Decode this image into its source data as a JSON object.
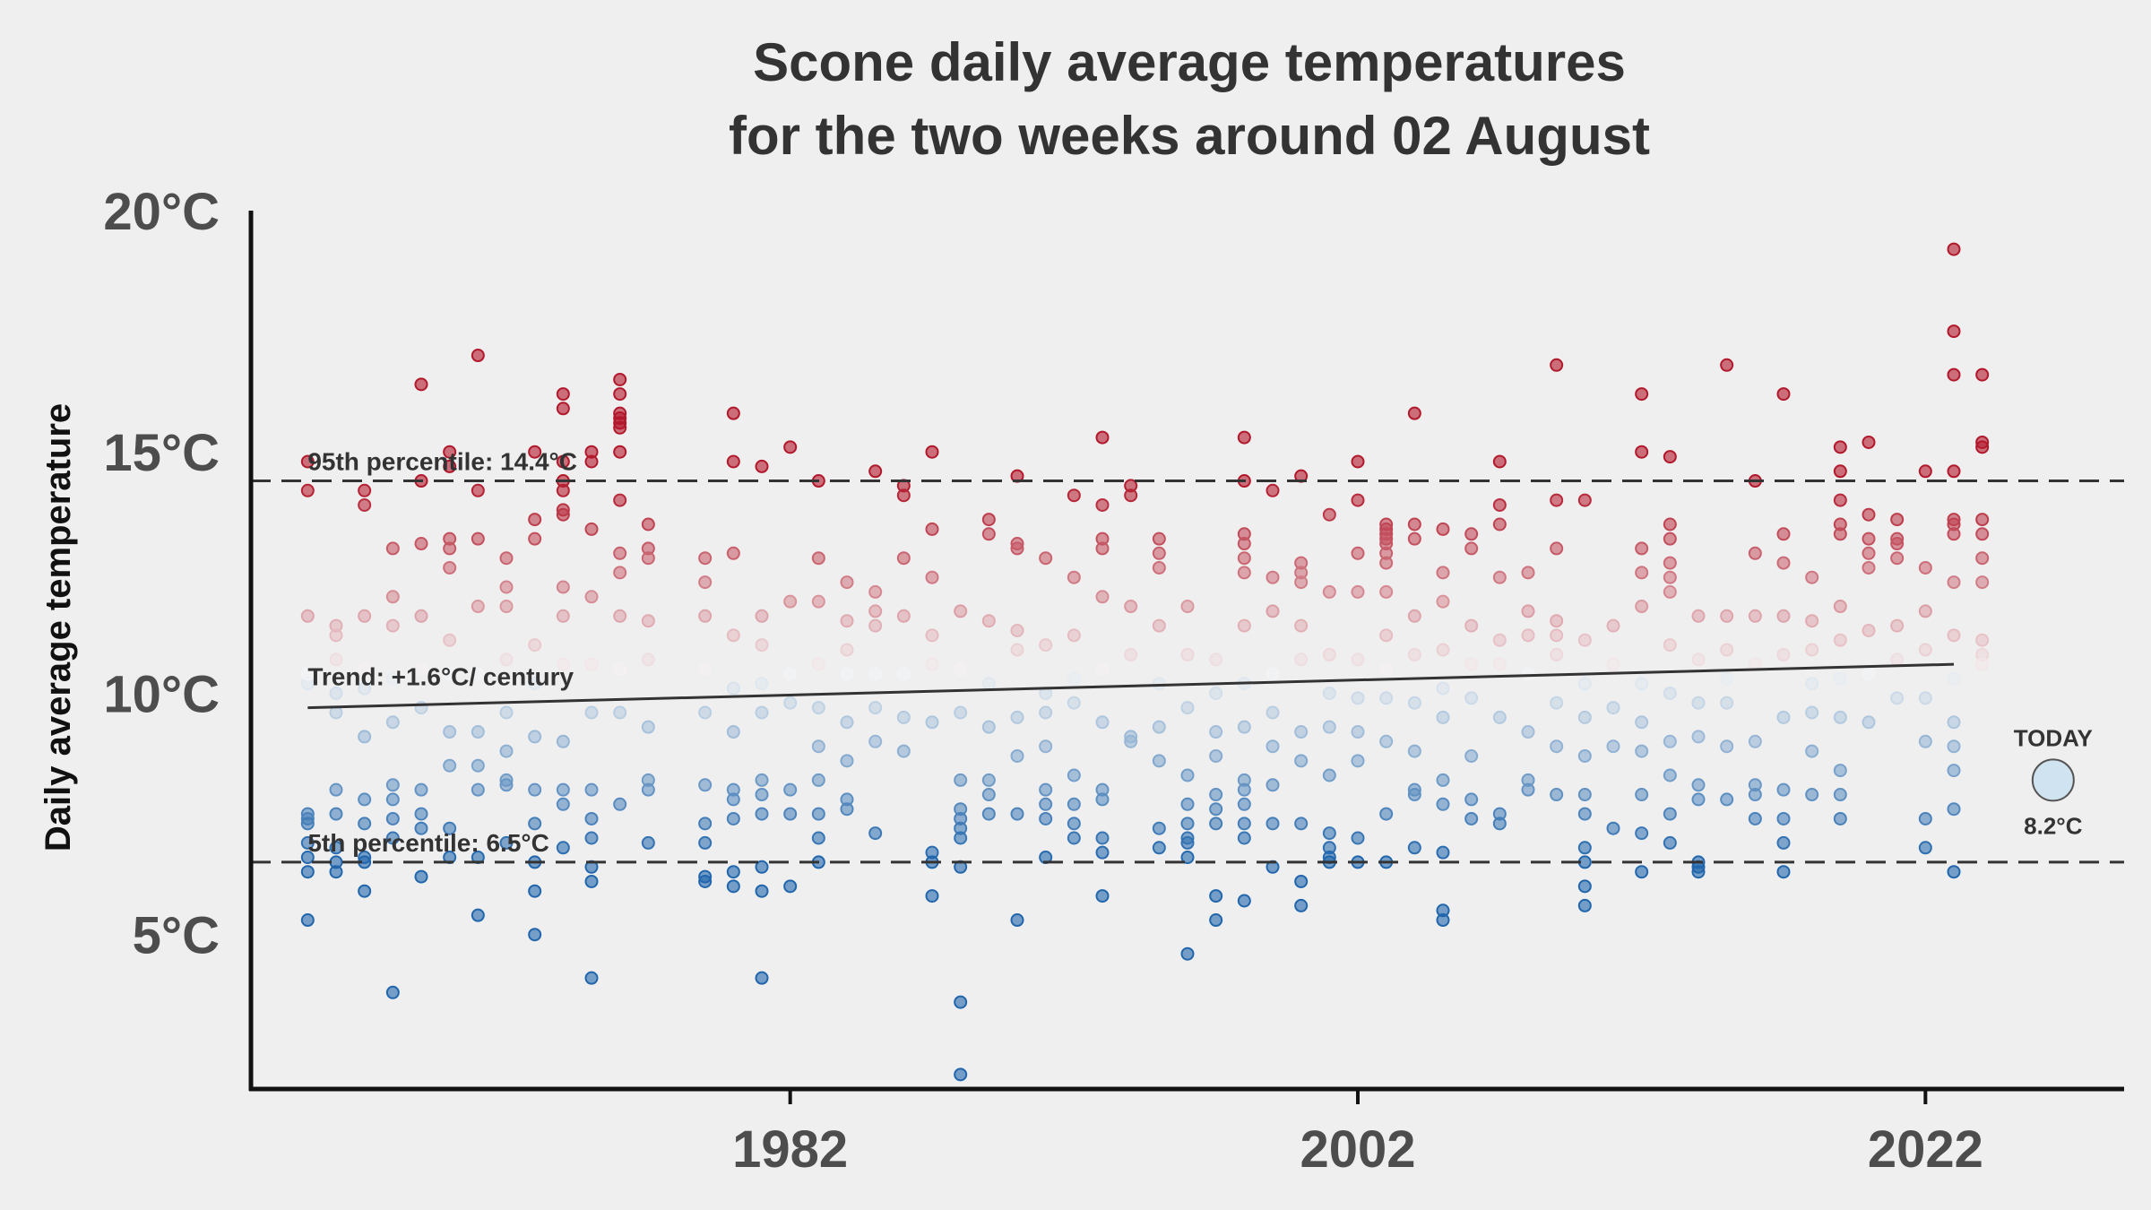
{
  "chart_data": {
    "type": "scatter",
    "title": "Scone daily average temperatures\nfor the two weeks around 02 August",
    "ylabel": "Daily average temperature",
    "xlabel": "",
    "xlim": [
      1963,
      2029
    ],
    "ylim": [
      1.8,
      20
    ],
    "x_ticks": [
      1982,
      2002,
      2022
    ],
    "x_tick_labels": [
      "1982",
      "2002",
      "2022"
    ],
    "y_ticks": [
      5,
      10,
      15,
      20
    ],
    "y_tick_labels": [
      "5°C",
      "10°C",
      "15°C",
      "20°C"
    ],
    "grid": false,
    "colormap": {
      "low": "#2166ac",
      "mid": "#f7f7f7",
      "high": "#b2182b",
      "range": [
        6.5,
        14.4
      ]
    },
    "percentile_95": {
      "value": 14.4,
      "label": "95th percentile: 14.4°C"
    },
    "percentile_5": {
      "value": 6.5,
      "label": "5th percentile: 6.5°C"
    },
    "trend": {
      "label": "Trend: +1.6°C/ century",
      "start": [
        1965,
        9.7
      ],
      "end": [
        2023,
        10.6
      ]
    },
    "today": {
      "label": "TODAY",
      "value_label": "8.2°C",
      "x": 2026.5,
      "y": 8.2
    },
    "series": [
      {
        "x": 1965,
        "values": [
          14.8,
          14.2,
          11.6,
          10.2,
          10.4,
          7.4,
          7.5,
          7.3,
          6.9,
          6.6,
          6.3,
          5.3
        ]
      },
      {
        "x": 1966,
        "values": [
          11.4,
          11.2,
          10.7,
          10.0,
          9.6,
          8.0,
          7.5,
          6.8,
          6.5,
          6.3
        ]
      },
      {
        "x": 1967,
        "values": [
          14.2,
          13.9,
          11.6,
          10.5,
          10.1,
          9.1,
          7.8,
          7.3,
          6.6,
          6.5,
          5.9
        ]
      },
      {
        "x": 1968,
        "values": [
          13.0,
          12.0,
          11.4,
          10.3,
          9.4,
          8.1,
          7.8,
          7.4,
          7.0,
          3.8
        ]
      },
      {
        "x": 1969,
        "values": [
          16.4,
          14.4,
          13.1,
          11.6,
          10.5,
          9.7,
          8.0,
          7.5,
          7.2,
          6.2
        ]
      },
      {
        "x": 1970,
        "values": [
          15.0,
          14.7,
          13.2,
          13.0,
          12.6,
          11.1,
          10.4,
          9.2,
          8.5,
          7.2,
          6.6
        ]
      },
      {
        "x": 1971,
        "values": [
          17.0,
          14.2,
          13.2,
          11.8,
          10.4,
          9.2,
          8.5,
          8.0,
          6.6,
          5.4
        ]
      },
      {
        "x": 1972,
        "values": [
          12.8,
          12.2,
          11.8,
          10.7,
          9.6,
          8.8,
          8.2,
          8.1,
          6.9
        ]
      },
      {
        "x": 1973,
        "values": [
          15.0,
          13.6,
          13.2,
          11.0,
          10.2,
          9.1,
          8.0,
          7.3,
          6.5,
          5.9,
          5.0
        ]
      },
      {
        "x": 1974,
        "values": [
          16.2,
          15.9,
          14.8,
          14.4,
          14.2,
          13.8,
          13.7,
          12.2,
          11.6,
          10.6,
          9.0,
          8.0,
          7.7,
          6.8
        ]
      },
      {
        "x": 1975,
        "values": [
          15.0,
          14.8,
          13.4,
          12.0,
          10.6,
          9.6,
          8.0,
          7.4,
          7.0,
          6.4,
          6.1,
          4.1
        ]
      },
      {
        "x": 1976,
        "values": [
          16.5,
          16.2,
          15.8,
          15.7,
          15.6,
          15.5,
          15.0,
          14.0,
          12.9,
          12.5,
          11.6,
          10.5,
          9.6,
          7.7
        ]
      },
      {
        "x": 1977,
        "values": [
          13.5,
          13.0,
          12.8,
          11.5,
          10.7,
          9.3,
          8.2,
          8.0,
          6.9
        ]
      },
      {
        "x": 1979,
        "values": [
          12.8,
          12.3,
          11.6,
          10.5,
          9.6,
          8.1,
          7.3,
          6.9,
          6.2,
          6.1
        ]
      },
      {
        "x": 1980,
        "values": [
          15.8,
          14.8,
          12.9,
          11.2,
          10.1,
          9.2,
          8.0,
          7.8,
          7.4,
          6.3,
          6.0
        ]
      },
      {
        "x": 1981,
        "values": [
          14.7,
          11.6,
          11.0,
          10.2,
          9.6,
          8.2,
          7.9,
          7.5,
          6.4,
          5.9,
          4.1
        ]
      },
      {
        "x": 1982,
        "values": [
          15.1,
          11.9,
          10.4,
          9.8,
          8.0,
          7.5,
          6.0
        ]
      },
      {
        "x": 1983,
        "values": [
          14.4,
          12.8,
          11.9,
          10.6,
          9.7,
          8.9,
          8.2,
          7.5,
          7.0,
          6.5
        ]
      },
      {
        "x": 1984,
        "values": [
          12.3,
          11.5,
          10.9,
          10.4,
          9.4,
          8.6,
          7.8,
          7.6
        ]
      },
      {
        "x": 1985,
        "values": [
          14.6,
          12.1,
          11.7,
          11.4,
          10.4,
          9.7,
          9.0,
          7.1
        ]
      },
      {
        "x": 1986,
        "values": [
          14.3,
          14.1,
          12.8,
          11.6,
          10.4,
          9.5,
          8.8
        ]
      },
      {
        "x": 1987,
        "values": [
          15.0,
          13.4,
          12.4,
          11.2,
          10.6,
          9.4,
          6.7,
          6.5,
          5.8
        ]
      },
      {
        "x": 1988,
        "values": [
          11.7,
          10.5,
          9.6,
          8.2,
          7.6,
          7.4,
          7.2,
          7.0,
          6.4,
          3.6,
          2.1
        ]
      },
      {
        "x": 1989,
        "values": [
          13.6,
          13.3,
          11.5,
          10.2,
          9.3,
          8.2,
          7.9,
          7.5
        ]
      },
      {
        "x": 1990,
        "values": [
          14.5,
          13.1,
          13.0,
          11.3,
          10.9,
          9.5,
          8.7,
          7.5,
          5.3
        ]
      },
      {
        "x": 1991,
        "values": [
          12.8,
          11.0,
          10.0,
          9.6,
          8.9,
          8.0,
          7.7,
          7.4,
          6.6
        ]
      },
      {
        "x": 1992,
        "values": [
          14.1,
          12.4,
          11.2,
          10.3,
          9.8,
          8.3,
          7.7,
          7.3,
          7.0
        ]
      },
      {
        "x": 1993,
        "values": [
          15.3,
          13.9,
          13.2,
          13.0,
          12.0,
          10.5,
          9.4,
          8.0,
          7.8,
          7.0,
          6.7,
          5.8
        ]
      },
      {
        "x": 1994,
        "values": [
          14.3,
          14.1,
          11.8,
          10.8,
          9.1,
          9.0
        ]
      },
      {
        "x": 1995,
        "values": [
          13.2,
          12.9,
          12.6,
          11.4,
          10.2,
          9.3,
          8.6,
          7.2,
          6.8
        ]
      },
      {
        "x": 1996,
        "values": [
          11.8,
          10.8,
          9.7,
          8.3,
          7.7,
          7.3,
          7.0,
          6.9,
          6.6,
          4.6
        ]
      },
      {
        "x": 1997,
        "values": [
          10.7,
          10.0,
          9.2,
          8.7,
          7.9,
          7.6,
          7.3,
          5.8,
          5.3
        ]
      },
      {
        "x": 1998,
        "values": [
          15.3,
          14.4,
          13.3,
          13.1,
          12.8,
          12.5,
          11.4,
          10.2,
          9.3,
          8.2,
          8.0,
          7.7,
          7.3,
          7.0,
          5.7
        ]
      },
      {
        "x": 1999,
        "values": [
          14.2,
          12.4,
          11.7,
          10.4,
          9.6,
          8.9,
          8.1,
          7.3,
          6.4
        ]
      },
      {
        "x": 2000,
        "values": [
          14.5,
          12.7,
          12.5,
          12.3,
          11.4,
          10.7,
          9.2,
          8.6,
          7.3,
          6.1,
          5.6
        ]
      },
      {
        "x": 2001,
        "values": [
          13.7,
          12.1,
          10.8,
          10.0,
          9.3,
          8.3,
          7.1,
          6.8,
          6.6,
          6.5
        ]
      },
      {
        "x": 2002,
        "values": [
          14.8,
          14.0,
          12.9,
          12.1,
          10.7,
          9.9,
          9.2,
          8.6,
          7.0,
          6.5
        ]
      },
      {
        "x": 2003,
        "values": [
          13.5,
          13.4,
          13.3,
          13.2,
          13.1,
          12.9,
          12.7,
          12.1,
          11.2,
          10.5,
          9.9,
          9.0,
          7.5,
          6.5
        ]
      },
      {
        "x": 2004,
        "values": [
          15.8,
          13.5,
          13.2,
          11.6,
          10.8,
          9.8,
          8.8,
          8.0,
          7.9,
          6.8
        ]
      },
      {
        "x": 2005,
        "values": [
          13.4,
          12.5,
          11.9,
          10.9,
          10.1,
          9.5,
          8.2,
          7.7,
          6.7,
          5.5,
          5.3
        ]
      },
      {
        "x": 2006,
        "values": [
          13.3,
          13.0,
          11.4,
          10.6,
          9.9,
          8.7,
          7.8,
          7.4
        ]
      },
      {
        "x": 2007,
        "values": [
          14.8,
          13.9,
          13.5,
          12.4,
          11.1,
          10.6,
          9.5,
          7.5,
          7.3
        ]
      },
      {
        "x": 2008,
        "values": [
          12.5,
          11.7,
          11.2,
          10.4,
          9.2,
          8.2,
          8.0
        ]
      },
      {
        "x": 2009,
        "values": [
          16.8,
          14.0,
          13.0,
          11.5,
          11.2,
          10.8,
          9.8,
          8.9,
          7.9
        ]
      },
      {
        "x": 2010,
        "values": [
          14.0,
          11.1,
          10.2,
          9.5,
          8.7,
          7.9,
          7.5,
          6.8,
          6.5,
          6.0,
          5.6
        ]
      },
      {
        "x": 2011,
        "values": [
          11.4,
          10.6,
          9.7,
          8.9,
          7.2
        ]
      },
      {
        "x": 2012,
        "values": [
          16.2,
          15.0,
          13.0,
          12.5,
          11.8,
          10.2,
          9.4,
          8.8,
          7.9,
          7.1,
          6.3
        ]
      },
      {
        "x": 2013,
        "values": [
          14.9,
          13.5,
          13.2,
          12.7,
          12.4,
          12.1,
          11.0,
          10.0,
          9.0,
          8.3,
          7.5,
          6.9
        ]
      },
      {
        "x": 2014,
        "values": [
          11.6,
          10.7,
          9.8,
          9.1,
          8.1,
          7.8,
          6.5,
          6.4,
          6.3
        ]
      },
      {
        "x": 2015,
        "values": [
          16.8,
          11.6,
          10.9,
          10.3,
          9.8,
          8.9,
          7.8
        ]
      },
      {
        "x": 2016,
        "values": [
          14.4,
          12.9,
          11.6,
          10.6,
          9.0,
          8.1,
          7.9,
          7.4
        ]
      },
      {
        "x": 2017,
        "values": [
          16.2,
          13.3,
          12.7,
          11.6,
          10.8,
          9.5,
          8.0,
          7.4,
          6.9,
          6.3
        ]
      },
      {
        "x": 2018,
        "values": [
          12.4,
          11.5,
          10.9,
          10.2,
          9.6,
          8.8,
          7.9
        ]
      },
      {
        "x": 2019,
        "values": [
          15.1,
          14.6,
          14.0,
          13.5,
          13.3,
          11.8,
          11.1,
          10.3,
          9.5,
          8.4,
          7.9,
          7.4
        ]
      },
      {
        "x": 2020,
        "values": [
          15.2,
          13.7,
          13.2,
          12.9,
          12.6,
          11.3,
          10.4,
          9.4
        ]
      },
      {
        "x": 2021,
        "values": [
          13.6,
          13.2,
          13.1,
          12.8,
          11.4,
          10.7,
          9.9
        ]
      },
      {
        "x": 2022,
        "values": [
          14.6,
          12.6,
          11.7,
          10.9,
          9.9,
          9.0,
          7.4,
          6.8
        ]
      },
      {
        "x": 2023,
        "values": [
          19.2,
          17.5,
          16.6,
          14.6,
          13.6,
          13.5,
          13.3,
          12.3,
          11.2,
          10.3,
          9.4,
          8.9,
          8.4,
          7.6,
          6.3
        ]
      },
      {
        "x": 2024,
        "values": [
          16.6,
          15.2,
          15.1,
          13.6,
          13.3,
          12.8,
          12.3,
          11.1,
          10.8,
          10.6
        ]
      }
    ]
  }
}
